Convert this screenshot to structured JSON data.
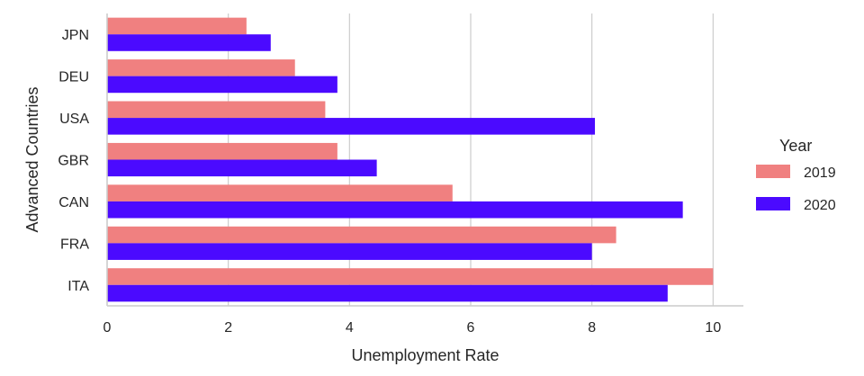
{
  "chart_data": {
    "type": "bar",
    "orientation": "horizontal",
    "categories": [
      "JPN",
      "DEU",
      "USA",
      "GBR",
      "CAN",
      "FRA",
      "ITA"
    ],
    "series": [
      {
        "name": "2019",
        "color": "#f08080",
        "values": [
          2.3,
          3.1,
          3.6,
          3.8,
          5.7,
          8.4,
          10.0
        ]
      },
      {
        "name": "2020",
        "color": "#4b0aff",
        "values": [
          2.7,
          3.8,
          8.05,
          4.45,
          9.5,
          8.0,
          9.25
        ]
      }
    ],
    "xlabel": "Unemployment Rate",
    "ylabel": "Advanced Countries",
    "xlim": [
      0,
      10.5
    ],
    "xticks": [
      0,
      2,
      4,
      6,
      8,
      10
    ],
    "grid": "vertical",
    "legend": {
      "title": "Year",
      "placement": "right"
    }
  }
}
